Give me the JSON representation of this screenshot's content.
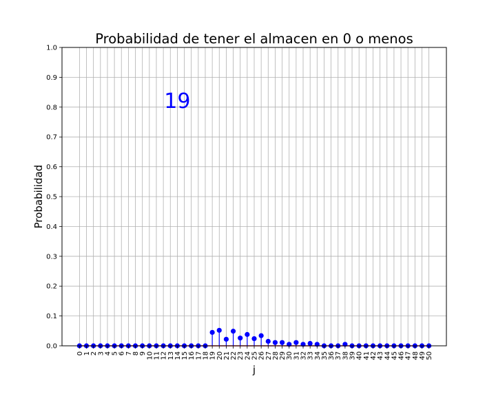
{
  "chart_data": {
    "type": "stem",
    "title": "Probabilidad de tener el almacen en 0 o menos",
    "xlabel": "j",
    "ylabel": "Probabilidad",
    "annotation": {
      "text": "19",
      "x": 14,
      "y": 0.82
    },
    "x": [
      0,
      1,
      2,
      3,
      4,
      5,
      6,
      7,
      8,
      9,
      10,
      11,
      12,
      13,
      14,
      15,
      16,
      17,
      18,
      19,
      20,
      21,
      22,
      23,
      24,
      25,
      26,
      27,
      28,
      29,
      30,
      31,
      32,
      33,
      34,
      35,
      36,
      37,
      38,
      39,
      40,
      41,
      42,
      43,
      44,
      45,
      46,
      47,
      48,
      49,
      50
    ],
    "x_ticks": [
      "0",
      "1",
      "2",
      "3",
      "4",
      "5",
      "6",
      "7",
      "8",
      "9",
      "10",
      "11",
      "12",
      "13",
      "14",
      "15",
      "16",
      "17",
      "18",
      "19",
      "20",
      "21",
      "22",
      "23",
      "24",
      "25",
      "26",
      "27",
      "28",
      "29",
      "30",
      "31",
      "32",
      "33",
      "34",
      "35",
      "36",
      "37",
      "38",
      "39",
      "40",
      "41",
      "42",
      "43",
      "44",
      "45",
      "46",
      "47",
      "48",
      "49",
      "50"
    ],
    "values": [
      0,
      0,
      0,
      0,
      0,
      0,
      0,
      0,
      0,
      0,
      0,
      0,
      0,
      0,
      0,
      0,
      0,
      0,
      0,
      0.045,
      0.052,
      0.022,
      0.049,
      0.026,
      0.038,
      0.024,
      0.034,
      0.015,
      0.011,
      0.011,
      0.005,
      0.011,
      0.005,
      0.008,
      0.005,
      0,
      0,
      0,
      0.005,
      0,
      0,
      0,
      0,
      0,
      0,
      0,
      0,
      0,
      0,
      0,
      0
    ],
    "y_ticks": [
      "0.0",
      "0.1",
      "0.2",
      "0.3",
      "0.4",
      "0.5",
      "0.6",
      "0.7",
      "0.8",
      "0.9",
      "1.0"
    ],
    "ylim": [
      0,
      1.0
    ],
    "xlim": [
      -2.5,
      52.5
    ],
    "grid": true,
    "colors": {
      "marker": "#0000ff",
      "stem": "#0000ff",
      "baseline": "#d62728",
      "annotation": "#0000ff",
      "grid": "#b0b0b0"
    }
  }
}
